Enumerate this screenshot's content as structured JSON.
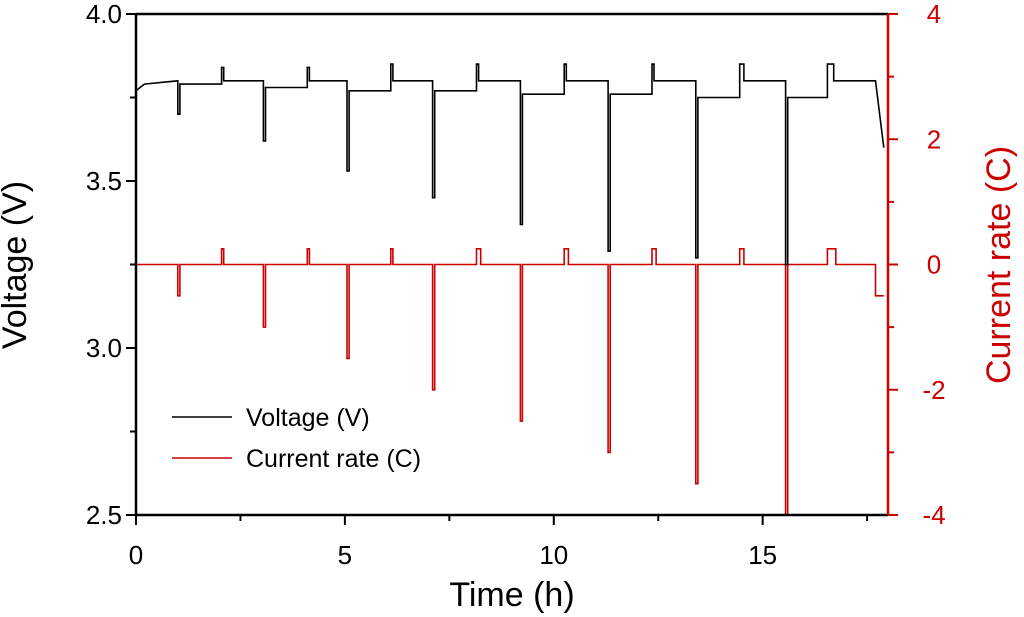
{
  "chart_data": {
    "type": "line",
    "title": "",
    "xlabel": "Time (h)",
    "ylabel_left": "Voltage (V)",
    "ylabel_right": "Current rate (C)",
    "xlim": [
      0,
      18
    ],
    "ylim_left": [
      2.5,
      4.0
    ],
    "ylim_right": [
      -4,
      4
    ],
    "x_ticks": [
      "0",
      "5",
      "10",
      "15"
    ],
    "y_ticks_left": [
      "2.5",
      "3.0",
      "3.5",
      "4.0"
    ],
    "y_ticks_right": [
      "-4",
      "-2",
      "0",
      "2",
      "4"
    ],
    "legend": {
      "position": "lower-left",
      "entries": [
        {
          "label": "Voltage (V)",
          "color": "#000000"
        },
        {
          "label": "Current rate (C)",
          "color": "#cc0000"
        }
      ]
    },
    "series": [
      {
        "name": "Voltage (V)",
        "axis": "left",
        "color": "#000000",
        "x": [
          0.0,
          0.2,
          1.0,
          1.0,
          1.05,
          1.05,
          2.05,
          2.05,
          2.1,
          2.1,
          3.05,
          3.05,
          3.1,
          3.1,
          4.1,
          4.1,
          4.15,
          4.15,
          5.05,
          5.05,
          5.1,
          5.1,
          6.1,
          6.1,
          6.15,
          6.15,
          7.1,
          7.1,
          7.15,
          7.15,
          8.15,
          8.15,
          8.2,
          8.2,
          9.2,
          9.2,
          9.25,
          9.25,
          10.25,
          10.25,
          10.3,
          10.3,
          11.3,
          11.3,
          11.35,
          11.35,
          12.35,
          12.35,
          12.4,
          12.4,
          13.4,
          13.4,
          13.45,
          13.45,
          14.45,
          14.45,
          14.55,
          14.55,
          15.55,
          15.55,
          15.6,
          15.6,
          16.55,
          16.55,
          16.7,
          16.7,
          17.7,
          17.9
        ],
        "values": [
          3.77,
          3.79,
          3.8,
          3.7,
          3.7,
          3.79,
          3.79,
          3.84,
          3.84,
          3.8,
          3.8,
          3.62,
          3.62,
          3.78,
          3.78,
          3.84,
          3.84,
          3.8,
          3.8,
          3.53,
          3.53,
          3.77,
          3.77,
          3.85,
          3.85,
          3.8,
          3.8,
          3.45,
          3.45,
          3.77,
          3.77,
          3.85,
          3.85,
          3.8,
          3.8,
          3.37,
          3.37,
          3.76,
          3.76,
          3.85,
          3.85,
          3.8,
          3.8,
          3.29,
          3.29,
          3.76,
          3.76,
          3.85,
          3.85,
          3.8,
          3.8,
          3.27,
          3.27,
          3.75,
          3.75,
          3.85,
          3.85,
          3.8,
          3.8,
          3.25,
          3.25,
          3.75,
          3.75,
          3.85,
          3.85,
          3.8,
          3.8,
          3.6
        ]
      },
      {
        "name": "Current rate (C)",
        "axis": "right",
        "color": "#cc0000",
        "x": [
          0.0,
          1.0,
          1.0,
          1.05,
          1.05,
          2.05,
          2.05,
          2.1,
          2.1,
          3.05,
          3.05,
          3.1,
          3.1,
          4.1,
          4.1,
          4.15,
          4.15,
          5.05,
          5.05,
          5.1,
          5.1,
          6.1,
          6.1,
          6.15,
          6.15,
          7.1,
          7.1,
          7.15,
          7.15,
          8.15,
          8.15,
          8.25,
          8.25,
          9.2,
          9.2,
          9.25,
          9.25,
          10.25,
          10.25,
          10.35,
          10.35,
          11.3,
          11.3,
          11.35,
          11.35,
          12.35,
          12.35,
          12.45,
          12.45,
          13.4,
          13.4,
          13.45,
          13.45,
          14.45,
          14.45,
          14.55,
          14.55,
          15.55,
          15.55,
          15.6,
          15.6,
          16.55,
          16.55,
          16.75,
          16.75,
          17.7,
          17.7,
          17.9
        ],
        "values": [
          0,
          0,
          -0.5,
          -0.5,
          0,
          0,
          0.25,
          0.25,
          0,
          0,
          -1.0,
          -1.0,
          0,
          0,
          0.25,
          0.25,
          0,
          0,
          -1.5,
          -1.5,
          0,
          0,
          0.25,
          0.25,
          0,
          0,
          -2.0,
          -2.0,
          0,
          0,
          0.25,
          0.25,
          0,
          0,
          -2.5,
          -2.5,
          0,
          0,
          0.25,
          0.25,
          0,
          0,
          -3.0,
          -3.0,
          0,
          0,
          0.25,
          0.25,
          0,
          0,
          -3.5,
          -3.5,
          0,
          0,
          0.25,
          0.25,
          0,
          0,
          -4.0,
          -4.0,
          0,
          0,
          0.25,
          0.25,
          0,
          0,
          -0.5,
          -0.5
        ]
      }
    ]
  }
}
